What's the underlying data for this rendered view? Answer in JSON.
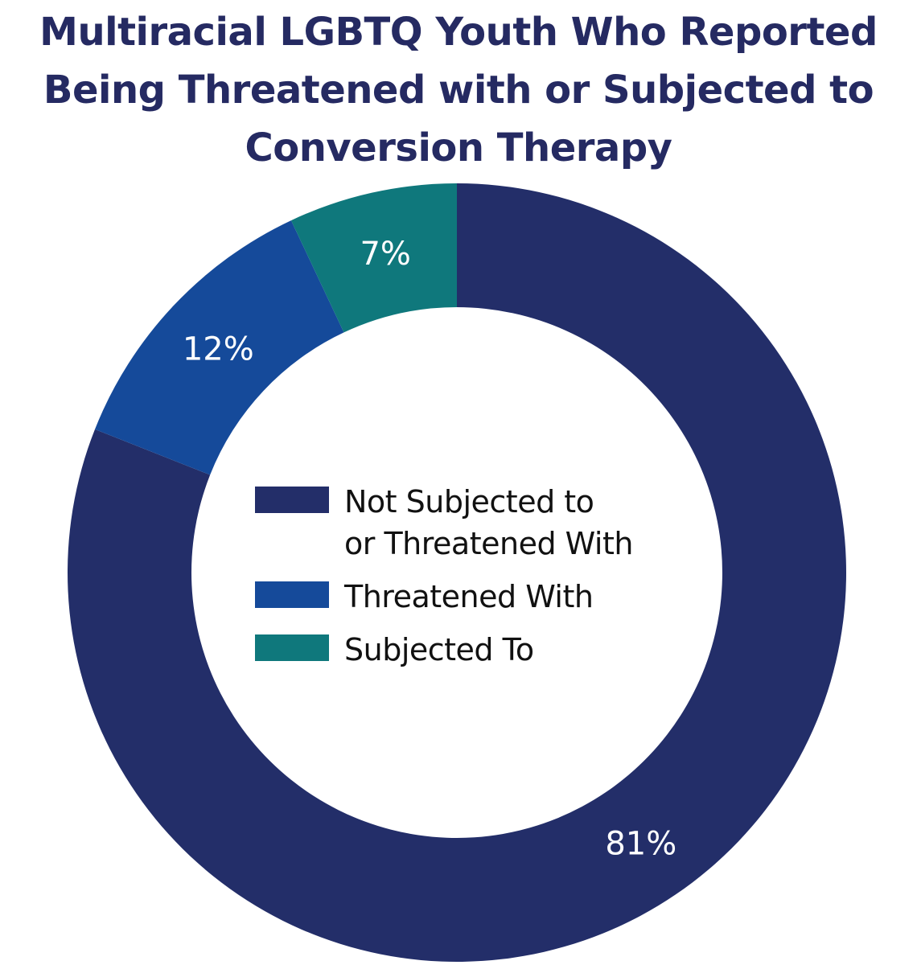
{
  "chart_data": {
    "type": "pie",
    "variant": "donut",
    "title": "Multiracial LGBTQ Youth Who Reported Being Threatened with or Subjected to Conversion Therapy",
    "categories": [
      "Not Subjected to or Threatened With",
      "Threatened With",
      "Subjected To"
    ],
    "values": [
      81,
      12,
      7
    ],
    "labels": [
      "81%",
      "12%",
      "7%"
    ],
    "colors": [
      "#232e69",
      "#154a9a",
      "#0f787c"
    ],
    "start": "top",
    "direction": "clockwise",
    "legend_placement": "center",
    "legend": [
      {
        "line1": "Not Subjected to",
        "line2": "or Threatened With"
      },
      {
        "line1": "Threatened With"
      },
      {
        "line1": "Subjected To"
      }
    ]
  }
}
